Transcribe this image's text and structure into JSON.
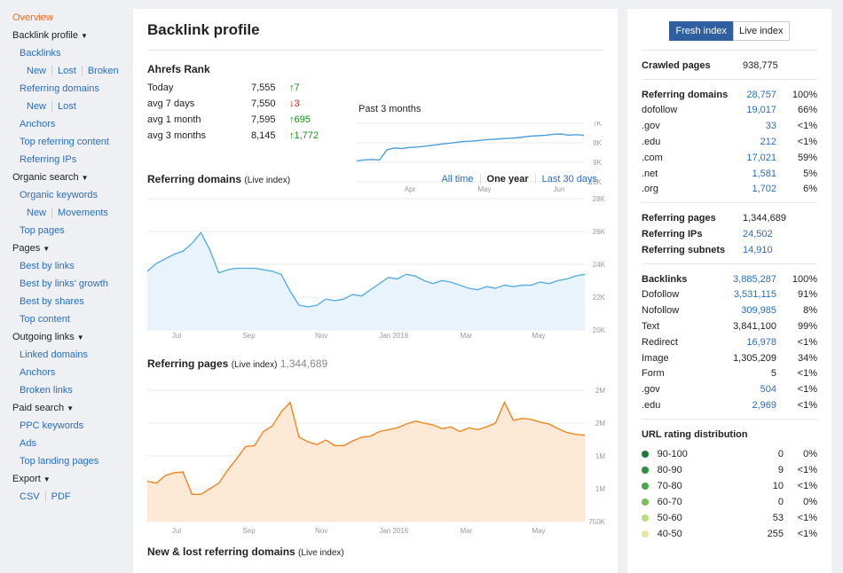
{
  "sidebar": {
    "overview": "Overview",
    "sections": [
      {
        "title": "Backlink profile",
        "items": [
          {
            "type": "link",
            "label": "Backlinks"
          },
          {
            "type": "sub",
            "labels": [
              "New",
              "Lost",
              "Broken"
            ]
          },
          {
            "type": "link",
            "label": "Referring domains"
          },
          {
            "type": "sub",
            "labels": [
              "New",
              "Lost"
            ]
          },
          {
            "type": "link",
            "label": "Anchors"
          },
          {
            "type": "link",
            "label": "Top referring content"
          },
          {
            "type": "link",
            "label": "Referring IPs"
          }
        ]
      },
      {
        "title": "Organic search",
        "items": [
          {
            "type": "link",
            "label": "Organic keywords"
          },
          {
            "type": "sub",
            "labels": [
              "New",
              "Movements"
            ]
          },
          {
            "type": "link",
            "label": "Top pages"
          }
        ]
      },
      {
        "title": "Pages",
        "items": [
          {
            "type": "link",
            "label": "Best by links"
          },
          {
            "type": "link",
            "label": "Best by links' growth"
          },
          {
            "type": "link",
            "label": "Best by shares"
          },
          {
            "type": "link",
            "label": "Top content"
          }
        ]
      },
      {
        "title": "Outgoing links",
        "items": [
          {
            "type": "link",
            "label": "Linked domains"
          },
          {
            "type": "link",
            "label": "Anchors"
          },
          {
            "type": "link",
            "label": "Broken links"
          }
        ]
      },
      {
        "title": "Paid search",
        "items": [
          {
            "type": "link",
            "label": "PPC keywords"
          },
          {
            "type": "link",
            "label": "Ads"
          },
          {
            "type": "link",
            "label": "Top landing pages"
          }
        ]
      },
      {
        "title": "Export",
        "items": [
          {
            "type": "sub",
            "labels": [
              "CSV",
              "PDF"
            ]
          }
        ]
      }
    ]
  },
  "main": {
    "title": "Backlink profile",
    "ahrefs_rank": {
      "title": "Ahrefs Rank",
      "rows": [
        {
          "label": "Today",
          "value": "7,555",
          "change": "↑7",
          "dir": "up"
        },
        {
          "label": "avg 7 days",
          "value": "7,550",
          "change": "↓3",
          "dir": "down"
        },
        {
          "label": "avg 1 month",
          "value": "7,595",
          "change": "↑695",
          "dir": "up"
        },
        {
          "label": "avg 3 months",
          "value": "8,145",
          "change": "↑1,772",
          "dir": "up"
        }
      ],
      "period_label": "Past 3 months"
    },
    "referring_domains": {
      "title": "Referring domains",
      "subtitle": "(Live index)",
      "filters": [
        "All time",
        "One year",
        "Last 30 days"
      ],
      "active_filter": "One year"
    },
    "referring_pages": {
      "title": "Referring pages",
      "subtitle": "(Live index)",
      "count": "1,344,689"
    },
    "new_lost": {
      "title": "New & lost referring domains",
      "subtitle": "(Live index)"
    }
  },
  "chart_data": [
    {
      "type": "line",
      "id": "ahrefs_rank",
      "x_ticks": [
        "Apr",
        "May",
        "Jun"
      ],
      "y_ticks": [
        "7K",
        "8K",
        "9K",
        "10K"
      ],
      "ylim": [
        10000,
        6800
      ],
      "inverted": true,
      "x": [
        0,
        1,
        2,
        3,
        4,
        5,
        6,
        7,
        8,
        9,
        10,
        11,
        12,
        13,
        14,
        15,
        16,
        17,
        18,
        19,
        20,
        21,
        22,
        23,
        24,
        25,
        26,
        27,
        28,
        29,
        30
      ],
      "values": [
        8850,
        8800,
        8780,
        8800,
        8250,
        8150,
        8180,
        8120,
        8100,
        8050,
        8000,
        7950,
        7900,
        7850,
        7800,
        7780,
        7750,
        7700,
        7680,
        7650,
        7620,
        7600,
        7550,
        7500,
        7480,
        7450,
        7400,
        7380,
        7450,
        7420,
        7450
      ],
      "color": "#4a9fd9"
    },
    {
      "type": "area",
      "id": "referring_domains",
      "x_ticks": [
        "Jul",
        "Sep",
        "Nov",
        "Jan 2016",
        "Mar",
        "May"
      ],
      "y_ticks": [
        "28K",
        "26K",
        "24K",
        "22K",
        "20K"
      ],
      "ylim": [
        20000,
        28500
      ],
      "x": [
        0,
        1,
        2,
        3,
        4,
        5,
        6,
        7,
        8,
        9,
        10,
        11,
        12,
        13,
        14,
        15,
        16,
        17,
        18,
        19,
        20,
        21,
        22,
        23,
        24,
        25,
        26,
        27,
        28,
        29,
        30,
        31,
        32,
        33,
        34,
        35,
        36,
        37,
        38,
        39,
        40,
        41,
        42,
        43,
        44,
        45,
        46,
        47,
        48,
        49
      ],
      "values": [
        23800,
        24300,
        24600,
        24900,
        25100,
        25600,
        26300,
        25200,
        23700,
        23900,
        24000,
        24000,
        24000,
        23900,
        23800,
        23600,
        22500,
        21600,
        21500,
        21600,
        22000,
        21900,
        22000,
        22300,
        22200,
        22600,
        23000,
        23400,
        23300,
        23600,
        23500,
        23200,
        23000,
        23200,
        23100,
        22900,
        22700,
        22600,
        22800,
        22700,
        22900,
        22800,
        22900,
        22900,
        23100,
        23000,
        23200,
        23300,
        23500,
        23600
      ],
      "color": "#5aaee0",
      "fill": "#e8f3fb"
    },
    {
      "type": "area",
      "id": "referring_pages",
      "x_ticks": [
        "Jul",
        "Sep",
        "Nov",
        "Jan 2016",
        "Mar",
        "May"
      ],
      "y_ticks": [
        "2M",
        "2M",
        "1M",
        "1M",
        "750K"
      ],
      "values": [
        1180000,
        1160000,
        1240000,
        1270000,
        1280000,
        1040000,
        1040000,
        1100000,
        1160000,
        1300000,
        1420000,
        1550000,
        1560000,
        1710000,
        1770000,
        1920000,
        2020000,
        1650000,
        1600000,
        1570000,
        1620000,
        1560000,
        1560000,
        1610000,
        1650000,
        1660000,
        1710000,
        1730000,
        1750000,
        1790000,
        1820000,
        1800000,
        1780000,
        1740000,
        1760000,
        1710000,
        1750000,
        1730000,
        1760000,
        1800000,
        2020000,
        1830000,
        1850000,
        1840000,
        1810000,
        1790000,
        1740000,
        1700000,
        1680000,
        1670000
      ],
      "ylim": [
        750000,
        2150000
      ],
      "color": "#f0851e",
      "fill": "#fde9d6"
    }
  ],
  "right": {
    "toggle": [
      "Fresh index",
      "Live index"
    ],
    "crawled": {
      "label": "Crawled pages",
      "value": "938,775"
    },
    "ref_domains": [
      {
        "label": "Referring domains",
        "value": "28,757",
        "pct": "100%",
        "bold": true,
        "link": true
      },
      {
        "label": "dofollow",
        "value": "19,017",
        "pct": "66%",
        "link": true
      },
      {
        "label": ".gov",
        "value": "33",
        "pct": "<1%",
        "link": true
      },
      {
        "label": ".edu",
        "value": "212",
        "pct": "<1%",
        "link": true
      },
      {
        "label": ".com",
        "value": "17,021",
        "pct": "59%",
        "link": true
      },
      {
        "label": ".net",
        "value": "1,581",
        "pct": "5%",
        "link": true
      },
      {
        "label": ".org",
        "value": "1,702",
        "pct": "6%",
        "link": true
      }
    ],
    "ref_pages": [
      {
        "label": "Referring pages",
        "value": "1,344,689",
        "link": false
      },
      {
        "label": "Referring IPs",
        "value": "24,502",
        "link": true
      },
      {
        "label": "Referring subnets",
        "value": "14,910",
        "link": true
      }
    ],
    "backlinks": [
      {
        "label": "Backlinks",
        "value": "3,885,287",
        "pct": "100%",
        "bold": true,
        "link": true
      },
      {
        "label": "Dofollow",
        "value": "3,531,115",
        "pct": "91%",
        "link": true
      },
      {
        "label": "Nofollow",
        "value": "309,985",
        "pct": "8%",
        "link": true
      },
      {
        "label": "Text",
        "value": "3,841,100",
        "pct": "99%",
        "link": false
      },
      {
        "label": "Redirect",
        "value": "16,978",
        "pct": "<1%",
        "link": true
      },
      {
        "label": "Image",
        "value": "1,305,209",
        "pct": "34%",
        "link": false
      },
      {
        "label": "Form",
        "value": "5",
        "pct": "<1%",
        "link": false
      },
      {
        "label": ".gov",
        "value": "504",
        "pct": "<1%",
        "link": true
      },
      {
        "label": ".edu",
        "value": "2,969",
        "pct": "<1%",
        "link": true
      }
    ],
    "url_rating": {
      "title": "URL rating distribution",
      "rows": [
        {
          "label": "90-100",
          "value": "0",
          "pct": "0%",
          "color": "#1e7a3a"
        },
        {
          "label": "80-90",
          "value": "9",
          "pct": "<1%",
          "color": "#2f8f40"
        },
        {
          "label": "70-80",
          "value": "10",
          "pct": "<1%",
          "color": "#4aa64a"
        },
        {
          "label": "60-70",
          "value": "0",
          "pct": "0%",
          "color": "#7cbf5a"
        },
        {
          "label": "50-60",
          "value": "53",
          "pct": "<1%",
          "color": "#b7dc7a"
        },
        {
          "label": "40-50",
          "value": "255",
          "pct": "<1%",
          "color": "#e8e6a0"
        }
      ]
    }
  }
}
